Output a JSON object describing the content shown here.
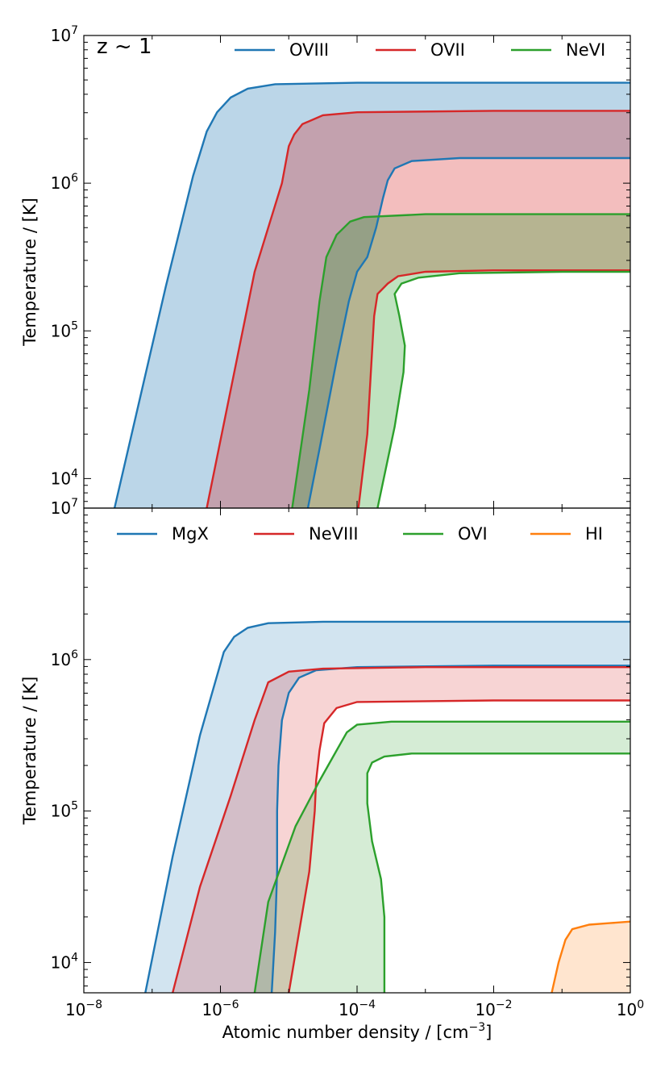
{
  "chart_data": [
    {
      "type": "area",
      "annotation": "z ~ 1",
      "xlabel": "",
      "ylabel": "Temperature / [K]",
      "xscale": "log",
      "yscale": "log",
      "xlim_log10": [
        -8,
        0
      ],
      "ylim_log10": [
        3.8,
        7.0
      ],
      "ytick_labels": [
        "10^4",
        "10^5",
        "10^6",
        "10^7"
      ],
      "legend_position": "top",
      "series": [
        {
          "name": "OVIII",
          "color": "#1f77b4",
          "fill_alpha": 0.3,
          "lower_boundary": [
            [
              -4.72,
              3.8
            ],
            [
              -4.55,
              4.2
            ],
            [
              -4.3,
              4.8
            ],
            [
              -4.12,
              5.2
            ],
            [
              -4.0,
              5.4
            ],
            [
              -3.85,
              5.5
            ],
            [
              -3.72,
              5.7
            ],
            [
              -3.62,
              5.9
            ],
            [
              -3.55,
              6.02
            ],
            [
              -3.45,
              6.1
            ],
            [
              -3.2,
              6.15
            ],
            [
              -2.5,
              6.17
            ],
            [
              -1.0,
              6.17
            ],
            [
              0.0,
              6.17
            ]
          ],
          "upper_boundary": [
            [
              -7.55,
              3.8
            ],
            [
              -7.2,
              4.5
            ],
            [
              -6.8,
              5.3
            ],
            [
              -6.4,
              6.05
            ],
            [
              -6.2,
              6.35
            ],
            [
              -6.05,
              6.48
            ],
            [
              -5.85,
              6.58
            ],
            [
              -5.6,
              6.64
            ],
            [
              -5.2,
              6.67
            ],
            [
              -4.0,
              6.68
            ],
            [
              -2.0,
              6.68
            ],
            [
              0.0,
              6.68
            ]
          ]
        },
        {
          "name": "OVII",
          "color": "#d62728",
          "fill_alpha": 0.3,
          "lower_boundary": [
            [
              -3.98,
              3.8
            ],
            [
              -3.85,
              4.3
            ],
            [
              -3.8,
              4.7
            ],
            [
              -3.75,
              5.1
            ],
            [
              -3.7,
              5.25
            ],
            [
              -3.55,
              5.32
            ],
            [
              -3.4,
              5.37
            ],
            [
              -3.0,
              5.4
            ],
            [
              -2.0,
              5.41
            ],
            [
              0.0,
              5.41
            ]
          ],
          "upper_boundary": [
            [
              -6.2,
              3.8
            ],
            [
              -5.85,
              4.6
            ],
            [
              -5.5,
              5.4
            ],
            [
              -5.1,
              6.0
            ],
            [
              -5.0,
              6.25
            ],
            [
              -4.92,
              6.33
            ],
            [
              -4.8,
              6.4
            ],
            [
              -4.5,
              6.46
            ],
            [
              -4.0,
              6.48
            ],
            [
              -2.0,
              6.49
            ],
            [
              0.0,
              6.49
            ]
          ]
        },
        {
          "name": "NeVI",
          "color": "#2ca02c",
          "fill_alpha": 0.3,
          "lower_boundary": [
            [
              -3.7,
              3.8
            ],
            [
              -3.45,
              4.35
            ],
            [
              -3.32,
              4.72
            ],
            [
              -3.3,
              4.9
            ],
            [
              -3.38,
              5.1
            ],
            [
              -3.45,
              5.25
            ],
            [
              -3.35,
              5.32
            ],
            [
              -3.1,
              5.36
            ],
            [
              -2.5,
              5.39
            ],
            [
              -1.0,
              5.4
            ],
            [
              0.0,
              5.4
            ]
          ],
          "upper_boundary": [
            [
              -4.95,
              3.8
            ],
            [
              -4.7,
              4.6
            ],
            [
              -4.55,
              5.2
            ],
            [
              -4.45,
              5.5
            ],
            [
              -4.3,
              5.65
            ],
            [
              -4.1,
              5.74
            ],
            [
              -3.9,
              5.77
            ],
            [
              -3.0,
              5.79
            ],
            [
              0.0,
              5.79
            ]
          ]
        }
      ]
    },
    {
      "type": "area",
      "xlabel": "Atomic number density / [cm^-3]",
      "ylabel": "Temperature / [K]",
      "xscale": "log",
      "yscale": "log",
      "xlim_log10": [
        -8,
        0
      ],
      "ylim_log10": [
        3.8,
        7.0
      ],
      "xtick_labels": [
        "10^-8",
        "10^-6",
        "10^-4",
        "10^-2",
        "10^0"
      ],
      "ytick_labels": [
        "10^4",
        "10^5",
        "10^6",
        "10^7"
      ],
      "legend_position": "top",
      "series": [
        {
          "name": "MgX",
          "color": "#1f77b4",
          "fill_alpha": 0.2,
          "lower_boundary": [
            [
              -5.25,
              3.8
            ],
            [
              -5.2,
              4.2
            ],
            [
              -5.17,
              4.6
            ],
            [
              -5.17,
              5.0
            ],
            [
              -5.15,
              5.3
            ],
            [
              -5.1,
              5.6
            ],
            [
              -5.0,
              5.78
            ],
            [
              -4.85,
              5.88
            ],
            [
              -4.6,
              5.93
            ],
            [
              -4.0,
              5.95
            ],
            [
              -2.0,
              5.96
            ],
            [
              0.0,
              5.96
            ]
          ],
          "upper_boundary": [
            [
              -7.1,
              3.8
            ],
            [
              -6.7,
              4.7
            ],
            [
              -6.3,
              5.5
            ],
            [
              -5.95,
              6.05
            ],
            [
              -5.8,
              6.15
            ],
            [
              -5.6,
              6.21
            ],
            [
              -5.3,
              6.24
            ],
            [
              -4.5,
              6.25
            ],
            [
              0.0,
              6.25
            ]
          ]
        },
        {
          "name": "NeVIII",
          "color": "#d62728",
          "fill_alpha": 0.2,
          "lower_boundary": [
            [
              -5.0,
              3.8
            ],
            [
              -4.85,
              4.2
            ],
            [
              -4.7,
              4.6
            ],
            [
              -4.62,
              5.0
            ],
            [
              -4.6,
              5.2
            ],
            [
              -4.55,
              5.4
            ],
            [
              -4.48,
              5.58
            ],
            [
              -4.3,
              5.68
            ],
            [
              -4.0,
              5.72
            ],
            [
              -2.0,
              5.73
            ],
            [
              0.0,
              5.73
            ]
          ],
          "upper_boundary": [
            [
              -6.7,
              3.8
            ],
            [
              -6.3,
              4.5
            ],
            [
              -5.85,
              5.1
            ],
            [
              -5.5,
              5.6
            ],
            [
              -5.3,
              5.85
            ],
            [
              -5.0,
              5.92
            ],
            [
              -4.5,
              5.94
            ],
            [
              -3.0,
              5.95
            ],
            [
              0.0,
              5.95
            ]
          ]
        },
        {
          "name": "OVI",
          "color": "#2ca02c",
          "fill_alpha": 0.2,
          "lower_boundary": [
            [
              -3.6,
              3.8
            ],
            [
              -3.6,
              4.3
            ],
            [
              -3.65,
              4.55
            ],
            [
              -3.78,
              4.8
            ],
            [
              -3.85,
              5.05
            ],
            [
              -3.85,
              5.25
            ],
            [
              -3.78,
              5.32
            ],
            [
              -3.6,
              5.36
            ],
            [
              -3.2,
              5.38
            ],
            [
              -2.0,
              5.38
            ],
            [
              0.0,
              5.38
            ]
          ],
          "upper_boundary": [
            [
              -5.5,
              3.8
            ],
            [
              -5.3,
              4.4
            ],
            [
              -4.9,
              4.9
            ],
            [
              -4.55,
              5.2
            ],
            [
              -4.3,
              5.4
            ],
            [
              -4.15,
              5.52
            ],
            [
              -4.0,
              5.57
            ],
            [
              -3.5,
              5.59
            ],
            [
              -2.0,
              5.59
            ],
            [
              0.0,
              5.59
            ]
          ]
        },
        {
          "name": "HI",
          "color": "#ff7f0e",
          "fill_alpha": 0.2,
          "lower_boundary": [
            [
              -1.15,
              3.8
            ],
            [
              0.0,
              3.8
            ]
          ],
          "upper_boundary": [
            [
              -1.15,
              3.8
            ],
            [
              -1.05,
              4.0
            ],
            [
              -0.95,
              4.15
            ],
            [
              -0.85,
              4.22
            ],
            [
              -0.6,
              4.25
            ],
            [
              -0.3,
              4.26
            ],
            [
              0.0,
              4.27
            ]
          ]
        }
      ]
    }
  ]
}
